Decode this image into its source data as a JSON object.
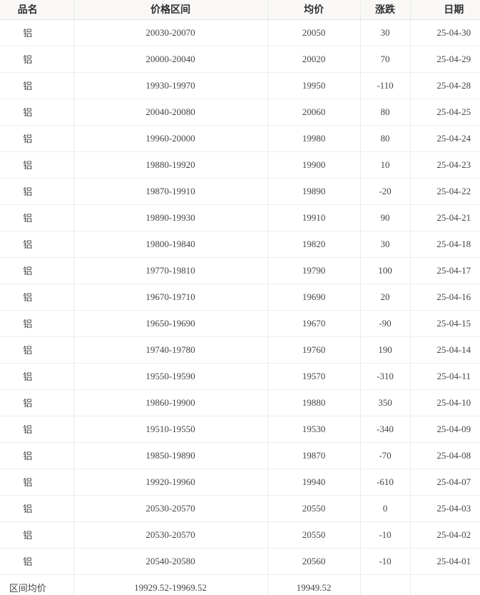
{
  "table": {
    "headers": [
      "品名",
      "价格区间",
      "均价",
      "涨跌",
      "日期"
    ],
    "rows": [
      [
        "铝",
        "20030-20070",
        "20050",
        "30",
        "25-04-30"
      ],
      [
        "铝",
        "20000-20040",
        "20020",
        "70",
        "25-04-29"
      ],
      [
        "铝",
        "19930-19970",
        "19950",
        "-110",
        "25-04-28"
      ],
      [
        "铝",
        "20040-20080",
        "20060",
        "80",
        "25-04-25"
      ],
      [
        "铝",
        "19960-20000",
        "19980",
        "80",
        "25-04-24"
      ],
      [
        "铝",
        "19880-19920",
        "19900",
        "10",
        "25-04-23"
      ],
      [
        "铝",
        "19870-19910",
        "19890",
        "-20",
        "25-04-22"
      ],
      [
        "铝",
        "19890-19930",
        "19910",
        "90",
        "25-04-21"
      ],
      [
        "铝",
        "19800-19840",
        "19820",
        "30",
        "25-04-18"
      ],
      [
        "铝",
        "19770-19810",
        "19790",
        "100",
        "25-04-17"
      ],
      [
        "铝",
        "19670-19710",
        "19690",
        "20",
        "25-04-16"
      ],
      [
        "铝",
        "19650-19690",
        "19670",
        "-90",
        "25-04-15"
      ],
      [
        "铝",
        "19740-19780",
        "19760",
        "190",
        "25-04-14"
      ],
      [
        "铝",
        "19550-19590",
        "19570",
        "-310",
        "25-04-11"
      ],
      [
        "铝",
        "19860-19900",
        "19880",
        "350",
        "25-04-10"
      ],
      [
        "铝",
        "19510-19550",
        "19530",
        "-340",
        "25-04-09"
      ],
      [
        "铝",
        "19850-19890",
        "19870",
        "-70",
        "25-04-08"
      ],
      [
        "铝",
        "19920-19960",
        "19940",
        "-610",
        "25-04-07"
      ],
      [
        "铝",
        "20530-20570",
        "20550",
        "0",
        "25-04-03"
      ],
      [
        "铝",
        "20530-20570",
        "20550",
        "-10",
        "25-04-02"
      ],
      [
        "铝",
        "20540-20580",
        "20560",
        "-10",
        "25-04-01"
      ]
    ],
    "footer": [
      "区间均价",
      "19929.52-19969.52",
      "19949.52",
      "",
      ""
    ]
  },
  "colors": {
    "text": "#454545",
    "header_text": "#303030",
    "header_background": "#f9f8f7",
    "border": "#ebebeb"
  }
}
